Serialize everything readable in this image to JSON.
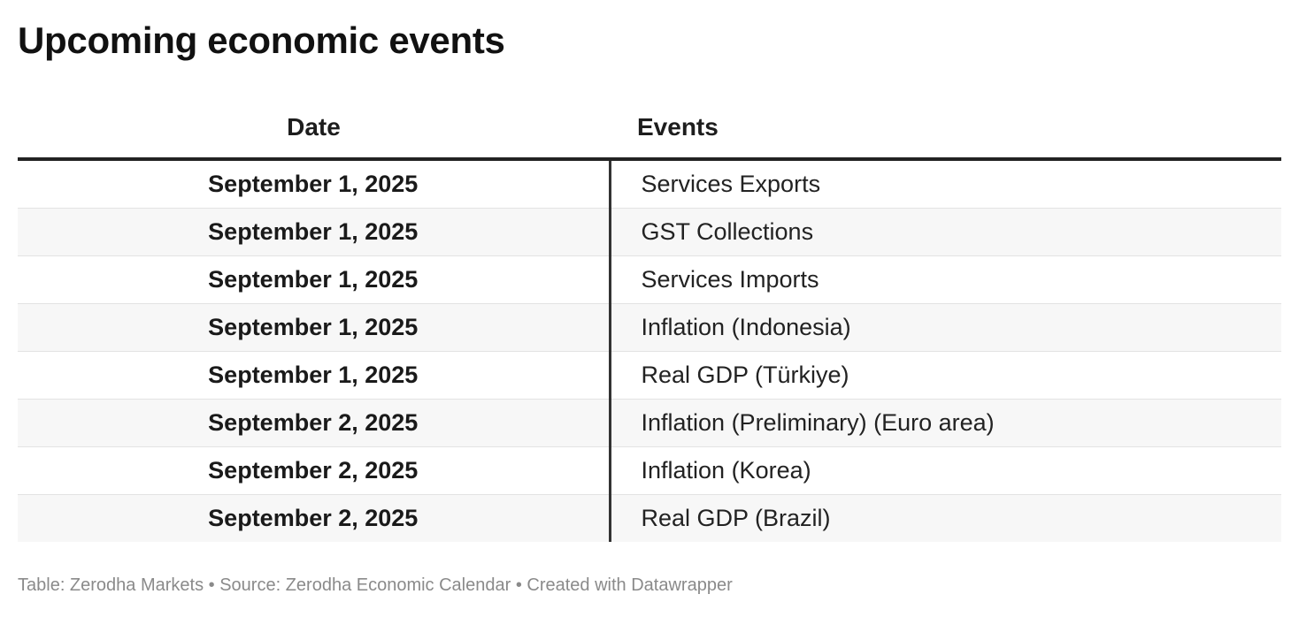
{
  "title": "Upcoming economic events",
  "chart_data": {
    "type": "table",
    "title": "Upcoming economic events",
    "columns": [
      "Date",
      "Events"
    ],
    "rows": [
      {
        "date": "September 1, 2025",
        "event": "Services Exports"
      },
      {
        "date": "September 1, 2025",
        "event": "GST Collections"
      },
      {
        "date": "September 1, 2025",
        "event": "Services Imports"
      },
      {
        "date": "September 1, 2025",
        "event": "Inflation (Indonesia)"
      },
      {
        "date": "September 1, 2025",
        "event": "Real GDP (Türkiye)"
      },
      {
        "date": "September 2, 2025",
        "event": "Inflation (Preliminary) (Euro area)"
      },
      {
        "date": "September 2, 2025",
        "event": "Inflation (Korea)"
      },
      {
        "date": "September 2, 2025",
        "event": "Real GDP (Brazil)"
      }
    ]
  },
  "footer": {
    "text": "Table: Zerodha Markets • Source: Zerodha Economic Calendar • Created with Datawrapper"
  }
}
